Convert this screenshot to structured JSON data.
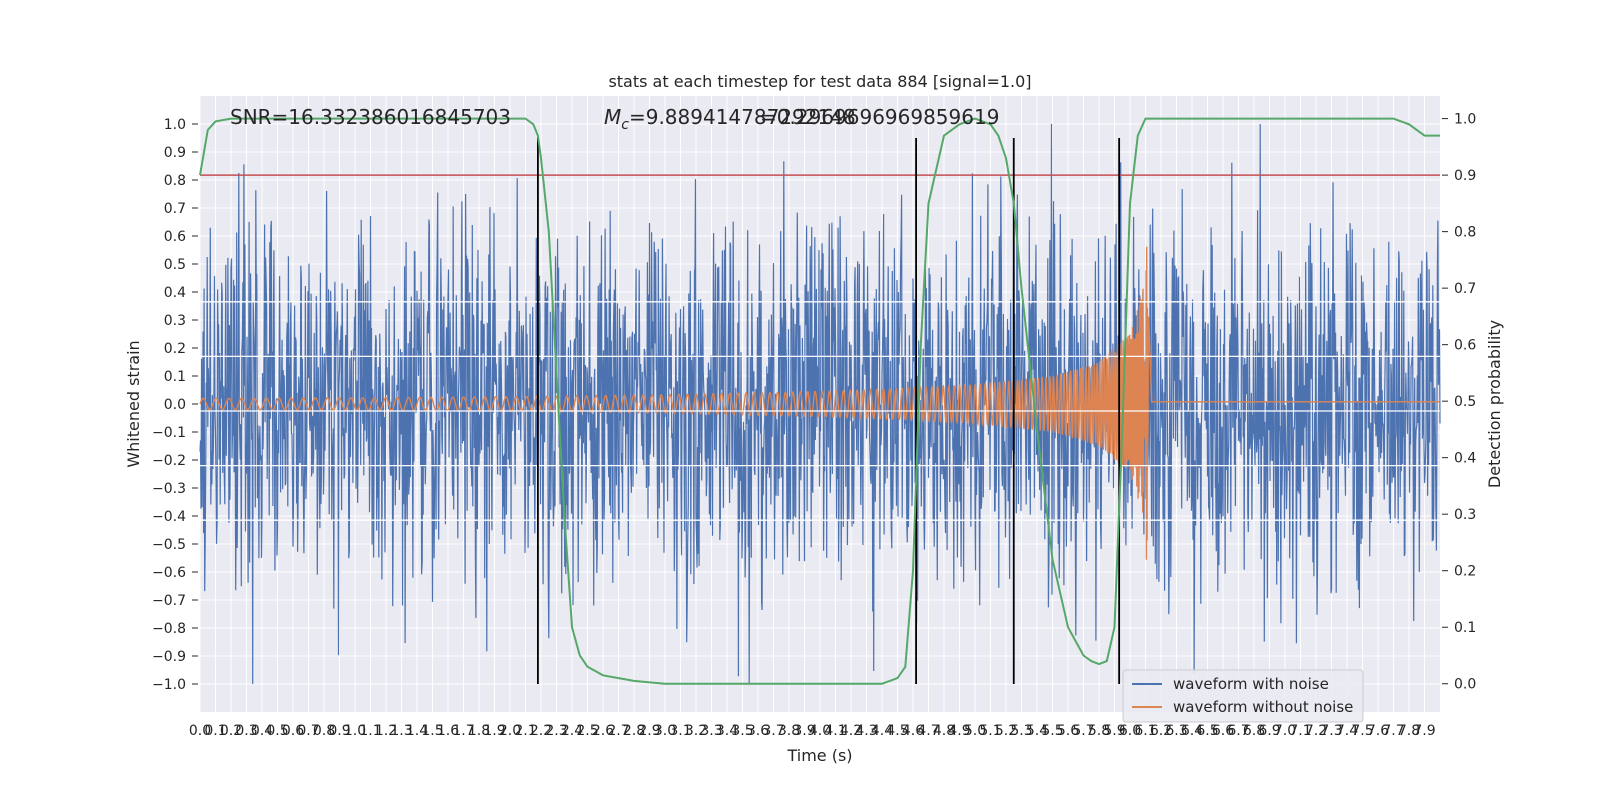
{
  "chart_data": {
    "type": "line",
    "title": "stats at each timestep for test data 884 [signal=1.0]",
    "xlabel": "Time (s)",
    "ylabel": "Whitened strain",
    "y2label": "Detection probability",
    "xlim": [
      0.0,
      8.0
    ],
    "ylim": [
      -1.1,
      1.1
    ],
    "y2lim": [
      -0.05,
      1.04
    ],
    "grid": true,
    "legend_position": "bottom-right",
    "x_ticks": [
      "0.0",
      "0.1",
      "0.2",
      "0.3",
      "0.4",
      "0.5",
      "0.6",
      "0.7",
      "0.8",
      "0.9",
      "1.0",
      "1.1",
      "1.2",
      "1.3",
      "1.4",
      "1.5",
      "1.6",
      "1.7",
      "1.8",
      "1.9",
      "2.0",
      "2.1",
      "2.2",
      "2.3",
      "2.4",
      "2.5",
      "2.6",
      "2.7",
      "2.8",
      "2.9",
      "3.0",
      "3.1",
      "3.2",
      "3.3",
      "3.4",
      "3.5",
      "3.6",
      "3.7",
      "3.8",
      "3.9",
      "4.0",
      "4.1",
      "4.2",
      "4.3",
      "4.4",
      "4.5",
      "4.6",
      "4.7",
      "4.8",
      "4.9",
      "5.0",
      "5.1",
      "5.2",
      "5.3",
      "5.4",
      "5.5",
      "5.6",
      "5.7",
      "5.8",
      "5.9",
      "6.0",
      "6.1",
      "6.2",
      "6.3",
      "6.4",
      "6.5",
      "6.6",
      "6.7",
      "6.8",
      "6.9",
      "7.0",
      "7.1",
      "7.2",
      "7.3",
      "7.4",
      "7.5",
      "7.6",
      "7.7",
      "7.8",
      "7.9"
    ],
    "y_ticks": [
      "1.0",
      "0.9",
      "0.8",
      "0.7",
      "0.6",
      "0.5",
      "0.4",
      "0.3",
      "0.2",
      "0.1",
      "0.0",
      "-0.1",
      "-0.2",
      "-0.3",
      "-0.4",
      "-0.5",
      "-0.6",
      "-0.7",
      "-0.8",
      "-0.9",
      "-1.0"
    ],
    "y2_ticks": [
      "1.0",
      "0.9",
      "0.8",
      "0.7",
      "0.6",
      "0.5",
      "0.4",
      "0.3",
      "0.2",
      "0.1",
      "0.0"
    ],
    "annotations": {
      "snr": "SNR=16.332386016845703",
      "mc_symbol": "M",
      "mc_sub": "c",
      "mc_value": "=9.889414787292148",
      "mc_overlap": "=0.2969696969859619"
    },
    "series": [
      {
        "name": "waveform with noise",
        "color": "#4c72b0",
        "axis": "left",
        "noise_amplitude": 0.42,
        "peak_amplitude": 1.0
      },
      {
        "name": "waveform without noise",
        "color": "#dd8452",
        "axis": "left",
        "merger_time": 6.12,
        "envelope": [
          [
            0.0,
            0.02
          ],
          [
            1.0,
            0.022
          ],
          [
            2.0,
            0.026
          ],
          [
            3.0,
            0.033
          ],
          [
            4.0,
            0.045
          ],
          [
            4.5,
            0.055
          ],
          [
            5.0,
            0.07
          ],
          [
            5.5,
            0.1
          ],
          [
            5.8,
            0.15
          ],
          [
            6.0,
            0.25
          ],
          [
            6.08,
            0.4
          ],
          [
            6.12,
            0.65
          ],
          [
            6.14,
            0.02
          ],
          [
            8.0,
            0.01
          ]
        ]
      },
      {
        "name": "detection probability",
        "color": "#55a868",
        "axis": "right",
        "x": [
          0.0,
          0.05,
          0.1,
          0.2,
          0.4,
          1.0,
          1.5,
          2.0,
          2.1,
          2.15,
          2.18,
          2.2,
          2.25,
          2.3,
          2.35,
          2.4,
          2.45,
          2.5,
          2.6,
          2.7,
          2.8,
          3.0,
          3.5,
          4.0,
          4.2,
          4.3,
          4.4,
          4.45,
          4.5,
          4.55,
          4.6,
          4.65,
          4.7,
          4.8,
          4.9,
          5.0,
          5.1,
          5.15,
          5.2,
          5.25,
          5.3,
          5.4,
          5.5,
          5.6,
          5.7,
          5.75,
          5.8,
          5.85,
          5.9,
          5.95,
          6.0,
          6.05,
          6.1,
          6.2,
          6.5,
          7.0,
          7.5,
          7.7,
          7.8,
          7.9,
          8.0
        ],
        "values": [
          0.9,
          0.98,
          0.995,
          1.0,
          1.0,
          1.0,
          1.0,
          1.0,
          1.0,
          0.99,
          0.97,
          0.93,
          0.8,
          0.55,
          0.3,
          0.1,
          0.05,
          0.03,
          0.015,
          0.01,
          0.005,
          0.0,
          0.0,
          0.0,
          0.0,
          0.0,
          0.0,
          0.005,
          0.01,
          0.03,
          0.2,
          0.6,
          0.85,
          0.97,
          0.99,
          1.0,
          0.99,
          0.97,
          0.93,
          0.85,
          0.7,
          0.45,
          0.22,
          0.1,
          0.05,
          0.04,
          0.035,
          0.04,
          0.1,
          0.45,
          0.85,
          0.97,
          1.0,
          1.0,
          1.0,
          1.0,
          1.0,
          1.0,
          0.99,
          0.97,
          0.97
        ]
      },
      {
        "name": "threshold",
        "color": "#c44e52",
        "axis": "right",
        "value": 0.9
      },
      {
        "name": "marker",
        "color": "#000000",
        "axis": "left",
        "x": [
          2.18,
          4.62,
          5.25,
          5.93
        ],
        "y_range": [
          -1.0,
          0.95
        ]
      }
    ],
    "horizontal_white_lines": [
      0.365,
      0.17,
      -0.025,
      -0.22,
      -0.415
    ]
  },
  "legend": {
    "items": [
      {
        "label": "waveform with noise",
        "color": "#4c72b0"
      },
      {
        "label": "waveform without noise",
        "color": "#dd8452"
      }
    ]
  }
}
